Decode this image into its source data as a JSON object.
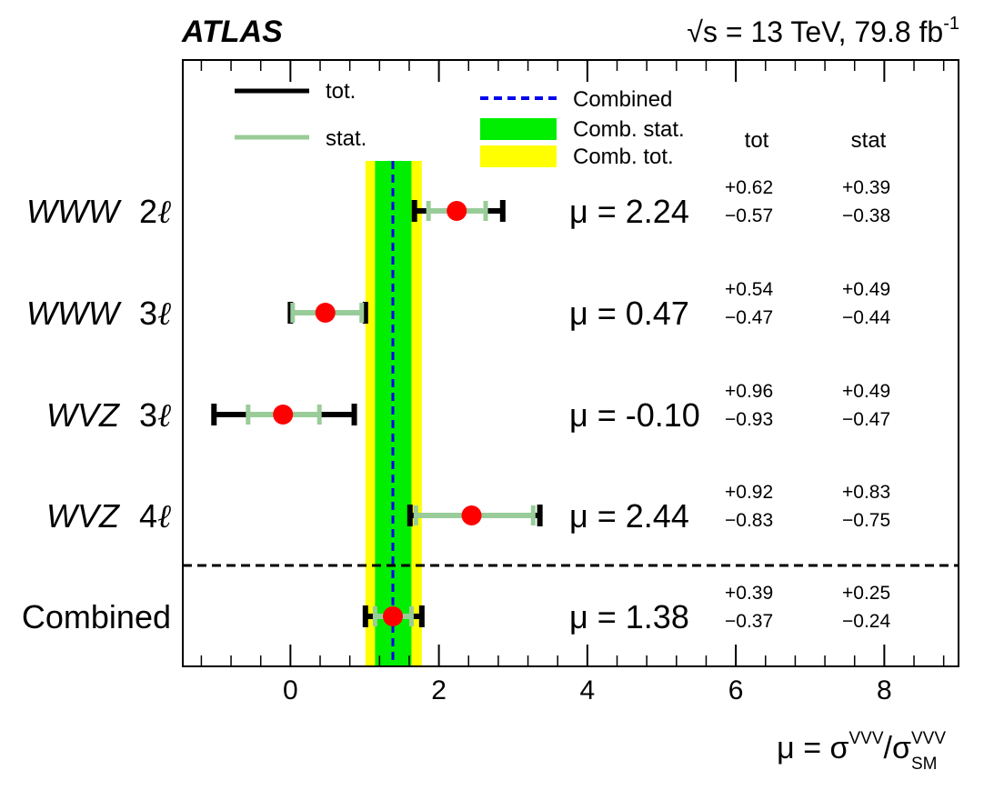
{
  "header": {
    "experiment": "ATLAS",
    "energy_text": "√s = 13 TeV, 79.8 fb",
    "energy_sup": "-1"
  },
  "legend": {
    "tot_label": "tot.",
    "stat_label": "stat.",
    "combined_label": "Combined",
    "comb_stat_label": "Comb. stat.",
    "comb_tot_label": "Comb. tot."
  },
  "columns": {
    "tot_header": "tot",
    "stat_header": "stat"
  },
  "axis": {
    "xlabel_main": "μ = σ",
    "xlabel_sup1": "VVV",
    "xlabel_slash": "/σ",
    "xlabel_sup2": "VVV",
    "xlabel_sub2": "SM"
  },
  "colors": {
    "point": "#ff0000",
    "tot_bar": "#000000",
    "stat_bar": "#99cc99",
    "comb_line": "#0000ee",
    "comb_stat_band": "#00ee00",
    "comb_tot_band": "#ffff00"
  },
  "chart_data": {
    "type": "scatter",
    "xlim": [
      -1.45,
      9.0
    ],
    "xticks": [
      0,
      2,
      4,
      6,
      8
    ],
    "combined": {
      "mu": 1.38,
      "stat_up": 0.25,
      "stat_down": 0.24,
      "tot_up": 0.39,
      "tot_down": 0.37
    },
    "channels": [
      {
        "label_main": "WWW",
        "label_num": "2",
        "label_sym": "ℓ",
        "mu": 2.24,
        "mu_text": "μ = 2.24",
        "tot_up": 0.62,
        "tot_down": 0.57,
        "stat_up": 0.39,
        "stat_down": 0.38,
        "tot_up_text": "+0.62",
        "tot_down_text": "−0.57",
        "stat_up_text": "+0.39",
        "stat_down_text": "−0.38"
      },
      {
        "label_main": "WWW",
        "label_num": "3",
        "label_sym": "ℓ",
        "mu": 0.47,
        "mu_text": "μ = 0.47",
        "tot_up": 0.54,
        "tot_down": 0.47,
        "stat_up": 0.49,
        "stat_down": 0.44,
        "tot_up_text": "+0.54",
        "tot_down_text": "−0.47",
        "stat_up_text": "+0.49",
        "stat_down_text": "−0.44"
      },
      {
        "label_main": "WVZ",
        "label_num": "3",
        "label_sym": "ℓ",
        "mu": -0.1,
        "mu_text": "μ = -0.10",
        "tot_up": 0.96,
        "tot_down": 0.93,
        "stat_up": 0.49,
        "stat_down": 0.47,
        "tot_up_text": "+0.96",
        "tot_down_text": "−0.93",
        "stat_up_text": "+0.49",
        "stat_down_text": "−0.47"
      },
      {
        "label_main": "WVZ",
        "label_num": "4",
        "label_sym": "ℓ",
        "mu": 2.44,
        "mu_text": "μ = 2.44",
        "tot_up": 0.92,
        "tot_down": 0.83,
        "stat_up": 0.83,
        "stat_down": 0.75,
        "tot_up_text": "+0.92",
        "tot_down_text": "−0.83",
        "stat_up_text": "+0.83",
        "stat_down_text": "−0.75"
      },
      {
        "label_main": "Combined",
        "label_num": "",
        "label_sym": "",
        "mu": 1.38,
        "mu_text": "μ = 1.38",
        "tot_up": 0.39,
        "tot_down": 0.37,
        "stat_up": 0.25,
        "stat_down": 0.24,
        "tot_up_text": "+0.39",
        "tot_down_text": "−0.37",
        "stat_up_text": "+0.25",
        "stat_down_text": "−0.24"
      }
    ]
  }
}
